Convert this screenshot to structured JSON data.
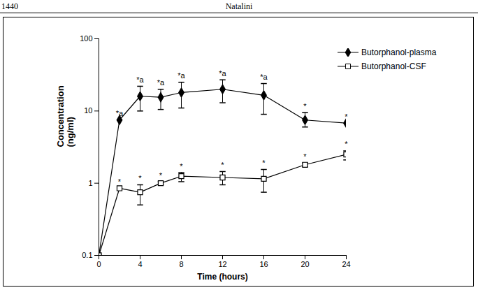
{
  "page": {
    "number": "1440",
    "running_head": "Natalini"
  },
  "chart_data": {
    "type": "line",
    "xlabel": "Time (hours)",
    "ylabel": "Concentration\n(ng/ml)",
    "x": [
      0,
      2,
      4,
      6,
      8,
      12,
      16,
      20,
      24
    ],
    "xlim": [
      0,
      24
    ],
    "xticks": [
      0,
      4,
      8,
      12,
      16,
      20,
      24
    ],
    "ylim": [
      0.1,
      100
    ],
    "yticks": [
      0.1,
      1,
      10,
      100
    ],
    "log": "y",
    "grid": false,
    "legend": "upper right",
    "series": [
      {
        "name": "Butorphanol-plasma",
        "color": "#000000",
        "marker": "diamond",
        "values": [
          0.1,
          7.5,
          16,
          15.5,
          18,
          20,
          16.5,
          7.5,
          6.8
        ],
        "error_low": [
          null,
          null,
          10,
          10.5,
          11,
          13,
          9,
          6,
          null
        ],
        "error_high": [
          null,
          null,
          22,
          20,
          25,
          27,
          24,
          9.5,
          null
        ],
        "point_labels": [
          null,
          "*a",
          "*a",
          "*a",
          "*a",
          "*a",
          "*a",
          "*",
          "*"
        ]
      },
      {
        "name": "Butorphanol-CSF",
        "color": "#000000",
        "marker": "open square",
        "values": [
          0.1,
          0.85,
          0.75,
          1.0,
          1.25,
          1.2,
          1.15,
          1.8,
          2.5
        ],
        "error_low": [
          null,
          null,
          0.5,
          0.95,
          1.05,
          0.95,
          0.75,
          1.7,
          2.1
        ],
        "error_high": [
          null,
          null,
          0.95,
          1.05,
          1.4,
          1.45,
          1.55,
          1.9,
          2.8
        ],
        "point_labels": [
          null,
          "*",
          "*",
          "*",
          "*",
          "*",
          "*",
          "*",
          "*"
        ]
      }
    ]
  }
}
